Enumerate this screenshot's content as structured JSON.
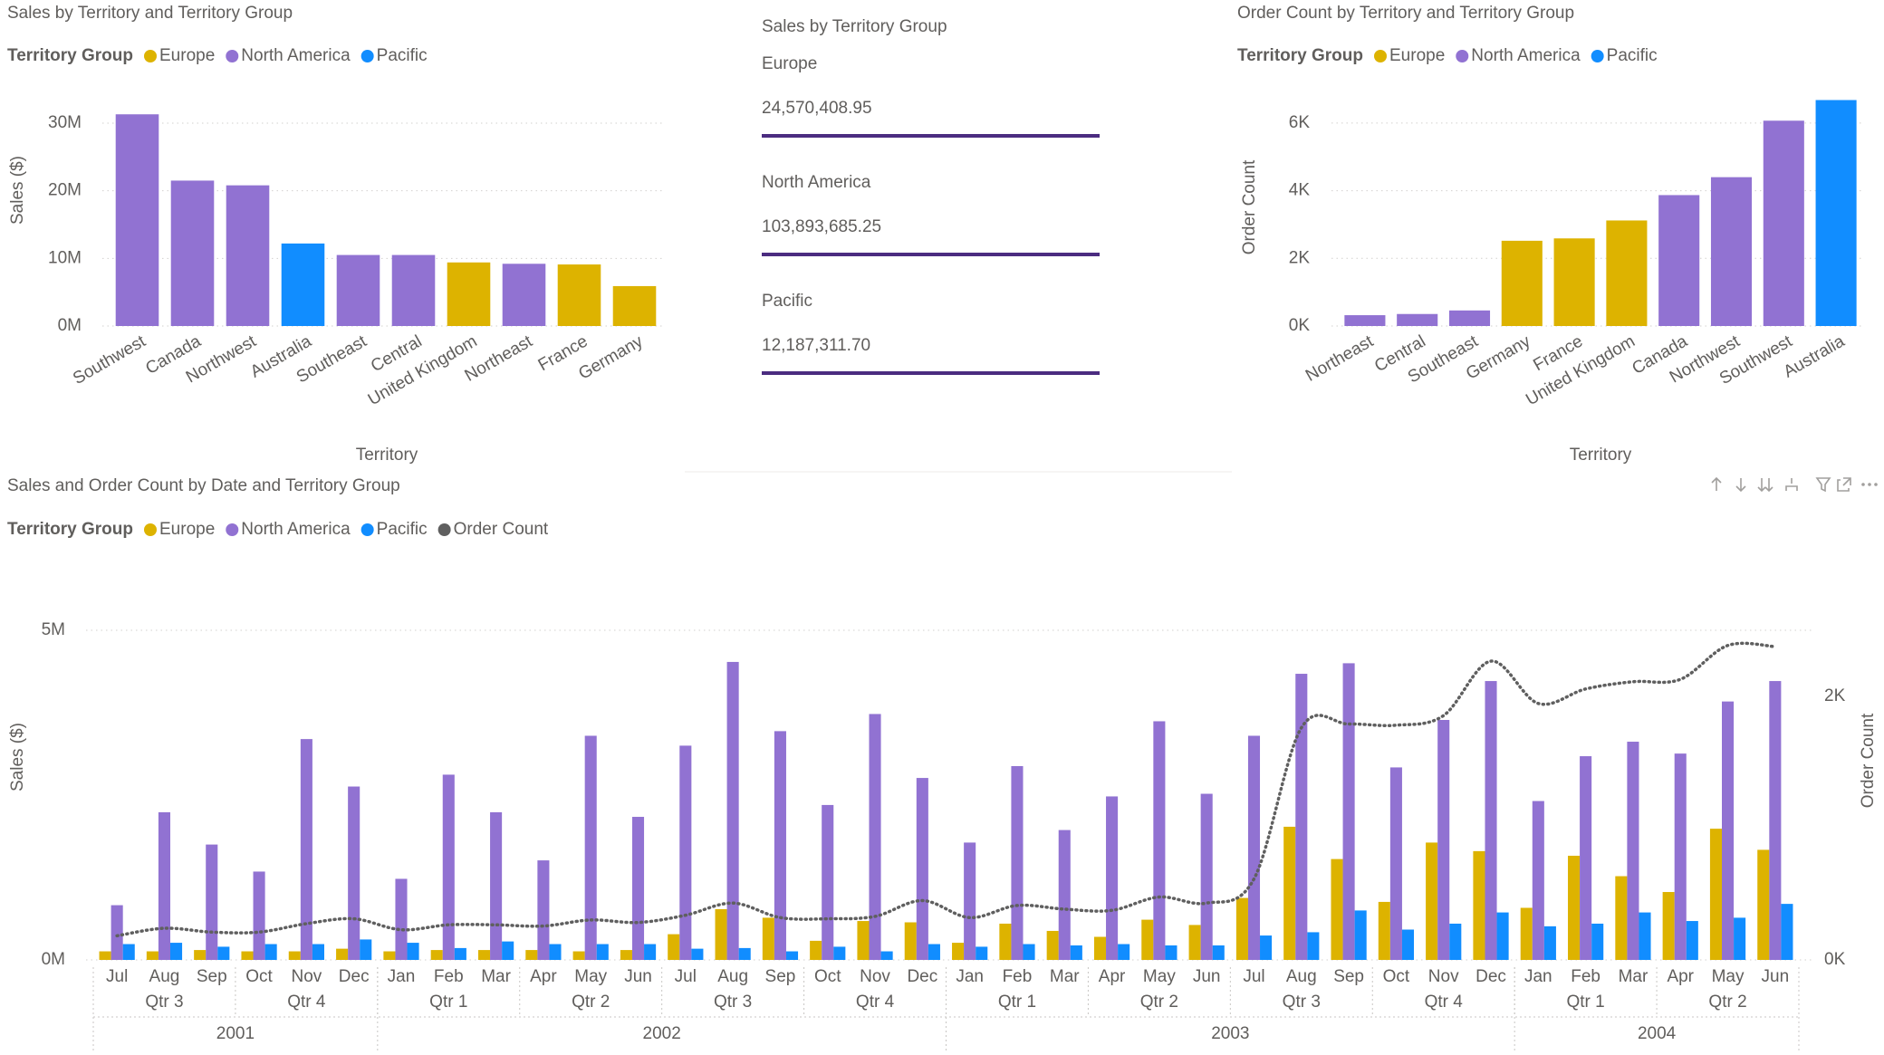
{
  "chart_data": [
    {
      "type": "bar",
      "title": "Sales by Territory and Territory Group",
      "legend_title": "Territory Group",
      "x_label": "Territory",
      "y_label": "Sales ($)",
      "categories": [
        "Southwest",
        "Canada",
        "Northwest",
        "Australia",
        "Southeast",
        "Central",
        "United Kingdom",
        "Northeast",
        "France",
        "Germany"
      ],
      "series": [
        {
          "name": "Europe",
          "color": "#DDB300",
          "values": [
            null,
            null,
            null,
            null,
            null,
            null,
            9400000,
            null,
            9100000,
            5900000
          ]
        },
        {
          "name": "North America",
          "color": "#9172D2",
          "values": [
            31300000,
            21500000,
            20800000,
            null,
            10500000,
            10500000,
            null,
            9200000,
            null,
            null
          ]
        },
        {
          "name": "Pacific",
          "color": "#118DFF",
          "values": [
            null,
            null,
            null,
            12200000,
            null,
            null,
            null,
            null,
            null,
            null
          ]
        }
      ],
      "ylim": [
        0,
        32000000
      ],
      "yticks": [
        {
          "value": 0,
          "label": "0M"
        },
        {
          "value": 10000000,
          "label": "10M"
        },
        {
          "value": 20000000,
          "label": "20M"
        },
        {
          "value": 30000000,
          "label": "30M"
        }
      ],
      "grid": true
    },
    {
      "type": "card",
      "title": "Sales by Territory Group",
      "categories": [
        "Europe",
        "North America",
        "Pacific"
      ],
      "values": [
        24570408.95,
        103893685.25,
        12187311.7
      ],
      "value_labels": [
        "24,570,408.95",
        "103,893,685.25",
        "12,187,311.70"
      ],
      "label_color": "#8C6FD0",
      "line_color": "#4B2C80"
    },
    {
      "type": "bar",
      "title": "Order Count by Territory and Territory Group",
      "legend_title": "Territory Group",
      "x_label": "Territory",
      "y_label": "Order Count",
      "categories": [
        "Northeast",
        "Central",
        "Southeast",
        "Germany",
        "France",
        "United Kingdom",
        "Canada",
        "Northwest",
        "Southwest",
        "Australia"
      ],
      "series": [
        {
          "name": "Europe",
          "color": "#DDB300",
          "values": [
            null,
            null,
            null,
            2520,
            2590,
            3120,
            null,
            null,
            null,
            null
          ]
        },
        {
          "name": "North America",
          "color": "#9172D2",
          "values": [
            320,
            355,
            460,
            null,
            null,
            null,
            3870,
            4400,
            6070,
            null
          ]
        },
        {
          "name": "Pacific",
          "color": "#118DFF",
          "values": [
            null,
            null,
            null,
            null,
            null,
            null,
            null,
            null,
            null,
            6680
          ]
        }
      ],
      "ylim": [
        0,
        6800
      ],
      "yticks": [
        {
          "value": 0,
          "label": "0K"
        },
        {
          "value": 2000,
          "label": "2K"
        },
        {
          "value": 4000,
          "label": "4K"
        },
        {
          "value": 6000,
          "label": "6K"
        }
      ],
      "grid": true
    },
    {
      "type": "combo",
      "title": "Sales and Order Count by Date and Territory Group",
      "legend_title": "Territory Group",
      "y_label": "Sales ($)",
      "y2_label": "Order Count",
      "categories": [
        "Jul",
        "Aug",
        "Sep",
        "Oct",
        "Nov",
        "Dec",
        "Jan",
        "Feb",
        "Mar",
        "Apr",
        "May",
        "Jun",
        "Jul",
        "Aug",
        "Sep",
        "Oct",
        "Nov",
        "Dec",
        "Jan",
        "Feb",
        "Mar",
        "Apr",
        "May",
        "Jun",
        "Jul",
        "Aug",
        "Sep",
        "Oct",
        "Nov",
        "Dec",
        "Jan",
        "Feb",
        "Mar",
        "Apr",
        "May",
        "Jun"
      ],
      "quarters": [
        "Qtr 3",
        "Qtr 3",
        "Qtr 3",
        "Qtr 4",
        "Qtr 4",
        "Qtr 4",
        "Qtr 1",
        "Qtr 1",
        "Qtr 1",
        "Qtr 2",
        "Qtr 2",
        "Qtr 2",
        "Qtr 3",
        "Qtr 3",
        "Qtr 3",
        "Qtr 4",
        "Qtr 4",
        "Qtr 4",
        "Qtr 1",
        "Qtr 1",
        "Qtr 1",
        "Qtr 2",
        "Qtr 2",
        "Qtr 2",
        "Qtr 3",
        "Qtr 3",
        "Qtr 3",
        "Qtr 4",
        "Qtr 4",
        "Qtr 4",
        "Qtr 1",
        "Qtr 1",
        "Qtr 1",
        "Qtr 2",
        "Qtr 2",
        "Qtr 2"
      ],
      "years": [
        "2001",
        "2001",
        "2001",
        "2001",
        "2001",
        "2001",
        "2002",
        "2002",
        "2002",
        "2002",
        "2002",
        "2002",
        "2002",
        "2002",
        "2002",
        "2002",
        "2002",
        "2002",
        "2003",
        "2003",
        "2003",
        "2003",
        "2003",
        "2003",
        "2003",
        "2003",
        "2003",
        "2003",
        "2003",
        "2003",
        "2004",
        "2004",
        "2004",
        "2004",
        "2004",
        "2004"
      ],
      "series": [
        {
          "name": "Europe",
          "color": "#DDB300",
          "values": [
            130000,
            130000,
            150000,
            130000,
            130000,
            170000,
            130000,
            150000,
            150000,
            150000,
            130000,
            150000,
            390000,
            770000,
            640000,
            290000,
            590000,
            570000,
            260000,
            550000,
            440000,
            350000,
            610000,
            530000,
            940000,
            2020000,
            1530000,
            880000,
            1780000,
            1650000,
            790000,
            1580000,
            1270000,
            1030000,
            1990000,
            1670000
          ]
        },
        {
          "name": "North America",
          "color": "#9172D2",
          "values": [
            830000,
            2240000,
            1750000,
            1340000,
            3350000,
            2630000,
            1230000,
            2810000,
            2240000,
            1510000,
            3400000,
            2170000,
            3250000,
            4520000,
            3470000,
            2350000,
            3730000,
            2760000,
            1780000,
            2940000,
            1970000,
            2480000,
            3620000,
            2520000,
            3400000,
            4340000,
            4500000,
            2920000,
            3640000,
            4230000,
            2410000,
            3090000,
            3310000,
            3130000,
            3920000,
            4230000
          ]
        },
        {
          "name": "Pacific",
          "color": "#118DFF",
          "values": [
            240000,
            260000,
            200000,
            240000,
            240000,
            310000,
            260000,
            180000,
            280000,
            240000,
            240000,
            240000,
            170000,
            180000,
            130000,
            200000,
            130000,
            240000,
            200000,
            240000,
            220000,
            240000,
            220000,
            220000,
            370000,
            420000,
            750000,
            460000,
            550000,
            720000,
            510000,
            550000,
            720000,
            590000,
            640000,
            850000
          ]
        },
        {
          "name": "Order Count",
          "color": "#5F5F5F",
          "axis": "y2",
          "values": [
            183,
            240,
            211,
            211,
            275,
            312,
            229,
            266,
            266,
            257,
            303,
            284,
            339,
            431,
            321,
            312,
            330,
            450,
            321,
            413,
            385,
            376,
            477,
            431,
            615,
            1761,
            1789,
            1780,
            1853,
            2266,
            1945,
            2055,
            2110,
            2128,
            2385,
            2376
          ]
        }
      ],
      "ylim": [
        0,
        5000000
      ],
      "yticks": [
        {
          "value": 0,
          "label": "0M"
        },
        {
          "value": 5000000,
          "label": "5M"
        }
      ],
      "y2lim": [
        0,
        2500
      ],
      "y2ticks": [
        {
          "value": 0,
          "label": "0K"
        },
        {
          "value": 2000,
          "label": "2K"
        }
      ],
      "grid": true
    }
  ]
}
